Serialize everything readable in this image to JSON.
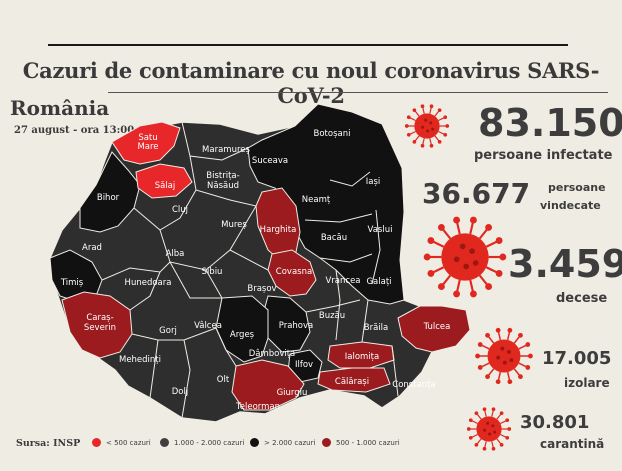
{
  "header": {
    "title": "Cazuri de contaminare cu noul coronavirus SARS-CoV-2",
    "country": "România",
    "date": "27 august - ora 13:00"
  },
  "stats": {
    "infected_value": "83.150",
    "infected_label": "persoane infectate",
    "recovered_value": "36.677",
    "recovered_label_line1": "persoane",
    "recovered_label_line2": "vindecate",
    "deaths_value": "3.459",
    "deaths_label": "decese",
    "isolation_value": "17.005",
    "isolation_label": "izolare",
    "quarantine_value": "30.801",
    "quarantine_label": "carantină"
  },
  "source": "Sursa: INSP",
  "legend": [
    {
      "label": "< 500 cazuri",
      "color": "#e8272a"
    },
    {
      "label": "1.000 - 2.000 cazuri",
      "color": "#3f3f3f"
    },
    {
      "label": "> 2.000 cazuri",
      "color": "#111111"
    },
    {
      "label": "500 - 1.000 cazuri",
      "color": "#9b1b1f"
    }
  ],
  "colors": {
    "under_500": "#e8272a",
    "between_500_1000": "#9b1b1f",
    "between_1000_2000": "#3f3f3f",
    "over_2000": "#111111",
    "virus": "#e0281f",
    "background": "#efece4"
  },
  "counties": {
    "satu_mare": "Satu\nMare",
    "maramures": "Maramureș",
    "botosani": "Botoșani",
    "salaj": "Sălaj",
    "bistrita": "Bistrița-\nNăsăud",
    "suceava": "Suceava",
    "iasi": "Iași",
    "bihor": "Bihor",
    "cluj": "Cluj",
    "neamt": "Neamț",
    "vaslui": "Vaslui",
    "harghita": "Harghita",
    "mures": "Mureș",
    "bacau": "Bacău",
    "arad": "Arad",
    "alba": "Alba",
    "covasna": "Covasna",
    "vrancea": "Vrancea",
    "galati": "Galați",
    "timis": "Timiș",
    "hunedoara": "Hunedoara",
    "sibiu": "Sibiu",
    "brasov": "Brașov",
    "caras_severin": "Caraș-\nSeverin",
    "buzau": "Buzău",
    "braila": "Brăila",
    "tulcea": "Tulcea",
    "gorj": "Gorj",
    "valcea": "Vâlcea",
    "arges": "Argeș",
    "prahova": "Prahova",
    "mehedinti": "Mehedinți",
    "dambovita": "Dâmbovița",
    "ialomita": "Ialomița",
    "ilfov": "Ilfov",
    "calarasi": "Călărași",
    "constanta": "Constanța",
    "dolj": "Dolj",
    "olt": "Olt",
    "giurgiu": "Giurgiu",
    "teleorman": "Teleorman"
  }
}
